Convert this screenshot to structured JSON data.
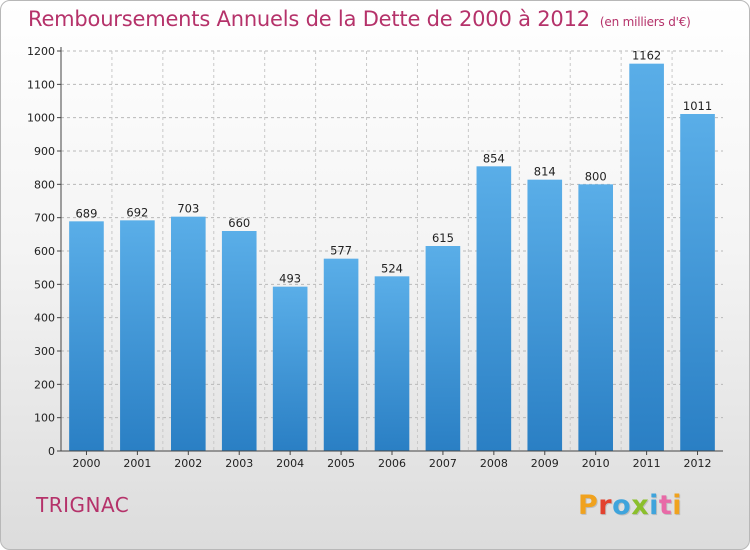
{
  "header": {
    "title": "Remboursements Annuels de la Dette de 2000 à 2012",
    "unit": "(en milliers d'€)"
  },
  "footer": {
    "commune": "TRIGNAC",
    "brand": "Proxiti"
  },
  "colors": {
    "title": "#b5326a",
    "bar_top": "#5aaee8",
    "bar_bottom": "#2a7fc4"
  },
  "chart_data": {
    "type": "bar",
    "title": "Remboursements Annuels de la Dette de 2000 à 2012",
    "xlabel": "",
    "ylabel": "",
    "categories": [
      "2000",
      "2001",
      "2002",
      "2003",
      "2004",
      "2005",
      "2006",
      "2007",
      "2008",
      "2009",
      "2010",
      "2011",
      "2012"
    ],
    "values": [
      689,
      692,
      703,
      660,
      493,
      577,
      524,
      615,
      854,
      814,
      800,
      1162,
      1011
    ],
    "ylim": [
      0,
      1200
    ],
    "yticks": [
      0,
      100,
      200,
      300,
      400,
      500,
      600,
      700,
      800,
      900,
      1000,
      1100,
      1200
    ],
    "grid": true
  }
}
